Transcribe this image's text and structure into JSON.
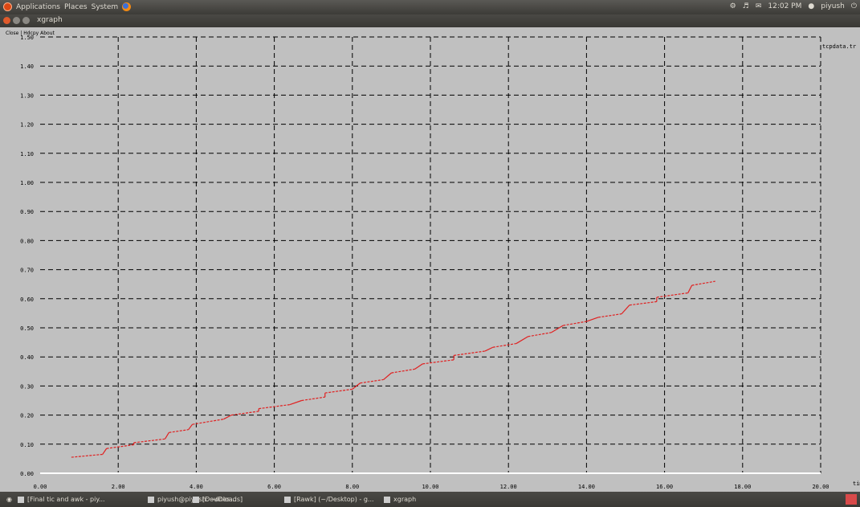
{
  "top_panel": {
    "menus": [
      "Applications",
      "Places",
      "System"
    ],
    "clock": "12:02 PM",
    "user": "piyush"
  },
  "window": {
    "title": "xgraph"
  },
  "graph_menu": {
    "items": [
      "Close",
      "Hdcpy",
      "About"
    ]
  },
  "legend": {
    "label": "tcpdata.tr"
  },
  "chart_data": {
    "type": "line",
    "title": "",
    "xlabel": "time",
    "ylabel": "",
    "x_ticks": [
      "0.00",
      "2.00",
      "4.00",
      "6.00",
      "8.00",
      "10.00",
      "12.00",
      "14.00",
      "16.00",
      "18.00",
      "20.00"
    ],
    "y_ticks": [
      "0.00",
      "0.10",
      "0.20",
      "0.30",
      "0.40",
      "0.50",
      "0.60",
      "0.70",
      "0.80",
      "0.90",
      "1.00",
      "1.10",
      "1.20",
      "1.30",
      "1.40",
      "1.50"
    ],
    "xlim": [
      0,
      20
    ],
    "ylim": [
      0,
      1.5
    ],
    "series_color": "#e02020",
    "series": [
      {
        "name": "",
        "values": [
          [
            0.8,
            0.055
          ],
          [
            1.6,
            0.065
          ],
          [
            1.7,
            0.085
          ],
          [
            2.4,
            0.098
          ],
          [
            2.4,
            0.105
          ],
          [
            3.2,
            0.118
          ],
          [
            3.3,
            0.14
          ],
          [
            3.8,
            0.15
          ],
          [
            3.9,
            0.168
          ],
          [
            4.7,
            0.186
          ],
          [
            4.9,
            0.2
          ],
          [
            5.6,
            0.213
          ],
          [
            5.6,
            0.222
          ],
          [
            6.4,
            0.236
          ],
          [
            6.7,
            0.25
          ],
          [
            7.3,
            0.262
          ],
          [
            7.3,
            0.276
          ],
          [
            8.0,
            0.289
          ],
          [
            8.2,
            0.31
          ],
          [
            8.8,
            0.322
          ],
          [
            9.0,
            0.345
          ],
          [
            9.6,
            0.358
          ],
          [
            9.8,
            0.376
          ],
          [
            10.6,
            0.39
          ],
          [
            10.6,
            0.405
          ],
          [
            11.4,
            0.42
          ],
          [
            11.6,
            0.433
          ],
          [
            12.2,
            0.446
          ],
          [
            12.5,
            0.47
          ],
          [
            13.1,
            0.484
          ],
          [
            13.4,
            0.508
          ],
          [
            14.0,
            0.522
          ],
          [
            14.3,
            0.536
          ],
          [
            14.9,
            0.548
          ],
          [
            15.1,
            0.578
          ],
          [
            15.8,
            0.59
          ],
          [
            15.8,
            0.605
          ],
          [
            16.6,
            0.62
          ],
          [
            16.7,
            0.646
          ],
          [
            17.3,
            0.66
          ]
        ]
      }
    ],
    "grid": true
  },
  "taskbar": {
    "items": [
      "[Final tic and awk - piy...",
      "piyush@piyush: ~/Des...",
      "[Downloads]",
      "[Rawk] (~/Desktop) - g...",
      "xgraph"
    ]
  }
}
